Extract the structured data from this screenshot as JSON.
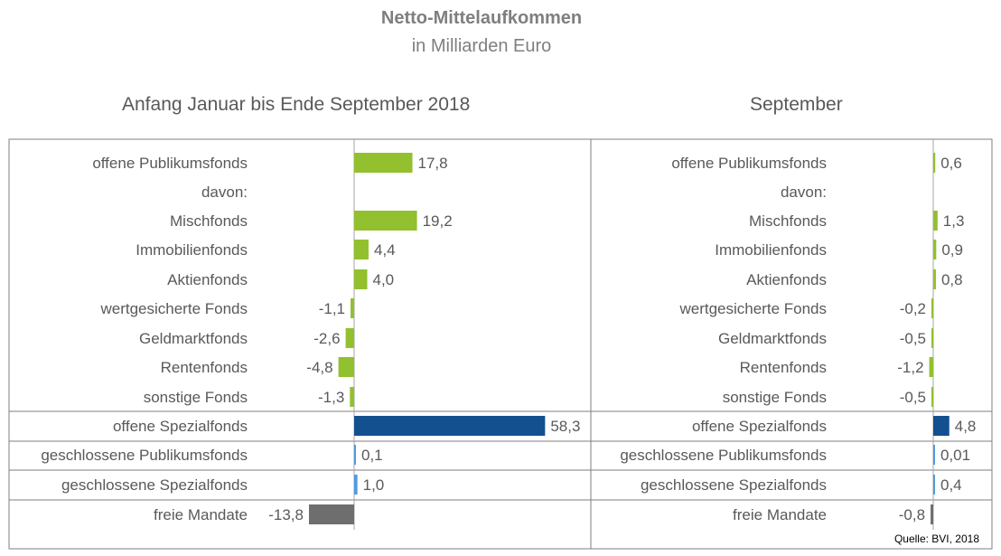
{
  "header": {
    "title": "Netto-Mittelaufkommen",
    "subtitle": "in Milliarden Euro"
  },
  "source": "Quelle: BVI, 2018",
  "colors": {
    "green": "#92c02e",
    "dark_blue": "#13508f",
    "light_blue": "#4f9ae0",
    "gray": "#6e6e6e",
    "border": "#7f7f7f"
  },
  "chart_data": [
    {
      "type": "bar",
      "orientation": "horizontal",
      "title": "Anfang Januar bis Ende September 2018",
      "categories": [
        "offene Publikumsfonds",
        "davon:",
        "Mischfonds",
        "Immobilienfonds",
        "Aktienfonds",
        "wertgesicherte Fonds",
        "Geldmarktfonds",
        "Rentenfonds",
        "sonstige Fonds",
        "offene Spezialfonds",
        "geschlossene Publikumsfonds",
        "geschlossene Spezialfonds",
        "freie Mandate"
      ],
      "values": [
        17.8,
        null,
        19.2,
        4.4,
        4.0,
        -1.1,
        -2.6,
        -4.8,
        -1.3,
        58.3,
        0.1,
        1.0,
        -13.8
      ],
      "labels": [
        "17,8",
        "",
        "19,2",
        "4,4",
        "4,0",
        "-1,1",
        "-2,6",
        "-4,8",
        "-1,3",
        "58,3",
        "0,1",
        "1,0",
        "-13,8"
      ],
      "bar_colors": [
        "green",
        "none",
        "green",
        "green",
        "green",
        "green",
        "green",
        "green",
        "green",
        "dark_blue",
        "light_blue",
        "light_blue",
        "gray"
      ]
    },
    {
      "type": "bar",
      "orientation": "horizontal",
      "title": "September",
      "categories": [
        "offene Publikumsfonds",
        "davon:",
        "Mischfonds",
        "Immobilienfonds",
        "Aktienfonds",
        "wertgesicherte Fonds",
        "Geldmarktfonds",
        "Rentenfonds",
        "sonstige Fonds",
        "offene Spezialfonds",
        "geschlossene Publikumsfonds",
        "geschlossene Spezialfonds",
        "freie Mandate"
      ],
      "values": [
        0.6,
        null,
        1.3,
        0.9,
        0.8,
        -0.2,
        -0.5,
        -1.2,
        -0.5,
        4.8,
        0.01,
        0.4,
        -0.8
      ],
      "labels": [
        "0,6",
        "",
        "1,3",
        "0,9",
        "0,8",
        "-0,2",
        "-0,5",
        "-1,2",
        "-0,5",
        "4,8",
        "0,01",
        "0,4",
        "-0,8"
      ],
      "bar_colors": [
        "green",
        "none",
        "green",
        "green",
        "green",
        "green",
        "green",
        "green",
        "green",
        "dark_blue",
        "light_blue",
        "light_blue",
        "gray"
      ]
    }
  ]
}
